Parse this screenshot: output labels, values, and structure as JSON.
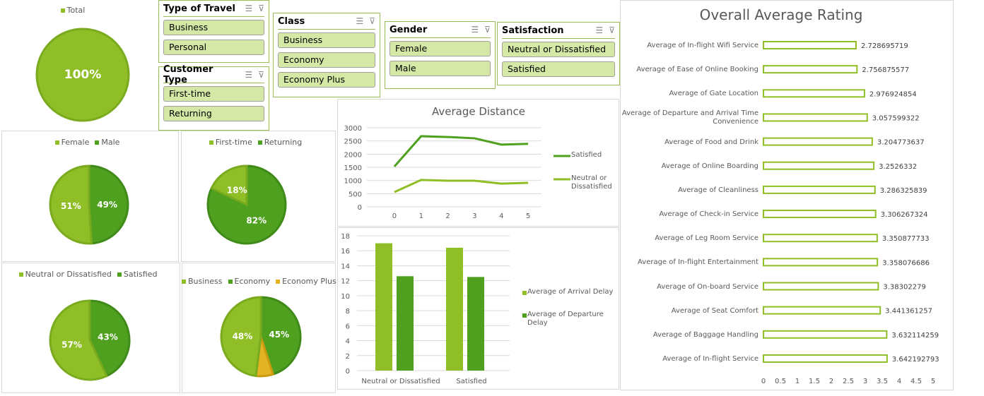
{
  "colors": {
    "light": "#8fbe26",
    "dark": "#50a020",
    "yellow": "#e3b324",
    "slicer_fill": "#d5e8a5",
    "accent": "#9bbb59"
  },
  "slicers": [
    {
      "title": "Type of Travel",
      "items": [
        "Business",
        "Personal"
      ]
    },
    {
      "title": "Customer Type",
      "items": [
        "First-time",
        "Returning"
      ]
    },
    {
      "title": "Class",
      "items": [
        "Business",
        "Economy",
        "Economy Plus"
      ]
    },
    {
      "title": "Gender",
      "items": [
        "Female",
        "Male"
      ]
    },
    {
      "title": "Satisfaction",
      "items": [
        "Neutral or Dissatisfied",
        "Satisfied"
      ]
    }
  ],
  "slicer_icons": [
    "multi-select-icon",
    "clear-filter-icon"
  ],
  "pies": [
    {
      "legend": [
        "Total"
      ],
      "values": [
        100
      ],
      "labels": [
        "100%"
      ],
      "colors": [
        "light"
      ]
    },
    {
      "legend": [
        "Female",
        "Male"
      ],
      "values": [
        51,
        49
      ],
      "labels": [
        "51%",
        "49%"
      ],
      "colors": [
        "light",
        "dark"
      ]
    },
    {
      "legend": [
        "First-time",
        "Returning"
      ],
      "values": [
        18,
        82
      ],
      "labels": [
        "18%",
        "82%"
      ],
      "colors": [
        "light",
        "dark"
      ]
    },
    {
      "legend": [
        "Neutral or Dissatisfied",
        "Satisfied"
      ],
      "values": [
        57,
        43
      ],
      "labels": [
        "57%",
        "43%"
      ],
      "colors": [
        "light",
        "dark"
      ]
    },
    {
      "legend": [
        "Business",
        "Economy",
        "Economy Plus"
      ],
      "values": [
        48,
        45,
        7
      ],
      "labels": [
        "48%",
        "45%",
        ""
      ],
      "colors": [
        "light",
        "dark",
        "yellow"
      ]
    }
  ],
  "chart_data": [
    {
      "type": "line",
      "title": "Average Distance",
      "x": [
        0,
        1,
        2,
        3,
        4,
        5
      ],
      "ylim": [
        0,
        3000
      ],
      "yticks": [
        0,
        500,
        1000,
        1500,
        2000,
        2500,
        3000
      ],
      "series": [
        {
          "name": "Satisfied",
          "values": [
            1530,
            2680,
            2650,
            2600,
            2360,
            2390
          ],
          "color": "dark"
        },
        {
          "name": "Neutral or Dissatisfied",
          "values": [
            560,
            1020,
            990,
            990,
            880,
            910
          ],
          "color": "light"
        }
      ],
      "legend": "right"
    },
    {
      "type": "bar",
      "categories": [
        "Neutral or Dissatisfied",
        "Satisfied"
      ],
      "ylim": [
        0,
        18
      ],
      "yticks": [
        0,
        2,
        4,
        6,
        8,
        10,
        12,
        14,
        16,
        18
      ],
      "series": [
        {
          "name": "Average of Arrival Delay",
          "values": [
            17.0,
            16.4
          ],
          "color": "light"
        },
        {
          "name": "Average of Departure Delay",
          "values": [
            12.6,
            12.5
          ],
          "color": "dark"
        }
      ],
      "legend": "right"
    },
    {
      "type": "bar",
      "title": "Overall Average Rating",
      "orientation": "horizontal",
      "xlim": [
        0,
        5
      ],
      "xticks": [
        "0",
        "0.5",
        "1",
        "1.5",
        "2",
        "2.5",
        "3",
        "3.5",
        "4",
        "4.5",
        "5"
      ],
      "categories": [
        "Average of In-flight Wifi Service",
        "Average of Ease of Online Booking",
        "Average of Gate Location",
        "Average of Departure and Arrival Time Convenience",
        "Average of Food and Drink",
        "Average of Online Boarding",
        "Average of Cleanliness",
        "Average of Check-in Service",
        "Average of Leg Room Service",
        "Average of In-flight Entertainment",
        "Average of On-board Service",
        "Average of Seat Comfort",
        "Average of Baggage Handling",
        "Average of In-flight Service"
      ],
      "values": [
        2.728695719,
        2.756875577,
        2.976924854,
        3.057599322,
        3.204773637,
        3.2526332,
        3.286325839,
        3.306267324,
        3.350877733,
        3.358076686,
        3.38302279,
        3.441361257,
        3.632114259,
        3.642192793
      ],
      "value_labels": [
        "2.728695719",
        "2.756875577",
        "2.976924854",
        "3.057599322",
        "3.204773637",
        "3.2526332",
        "3.286325839",
        "3.306267324",
        "3.350877733",
        "3.358076686",
        "3.38302279",
        "3.441361257",
        "3.632114259",
        "3.642192793"
      ]
    }
  ]
}
